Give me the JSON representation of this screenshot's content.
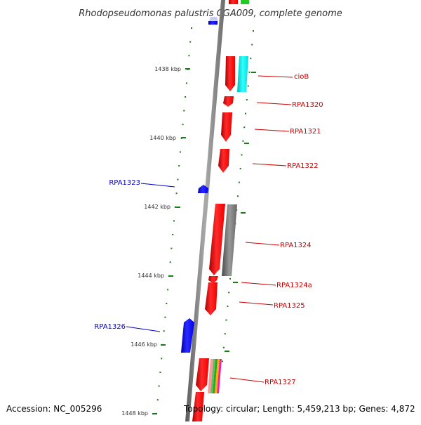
{
  "title": "Rhodopseudomonas palustris CGA009, complete genome",
  "footer": {
    "accession": "Accession: NC_005296",
    "summary": "Topology: circular; Length: 5,459,213 bp; Genes: 4,872"
  },
  "colors": {
    "backbone": "#808080",
    "forward_gene": "#ff0000",
    "reverse_gene": "#0000ff",
    "forward_label": "#cc0000",
    "reverse_label": "#0000cc",
    "tick": "#1a7a1a",
    "ciob_partner": "#00e5e5",
    "rpa1324_partner": "#707070"
  },
  "ruler_labels": [
    "1438 kbp",
    "1440 kbp",
    "1442 kbp",
    "1444 kbp",
    "1446 kbp",
    "1448 kbp"
  ],
  "genes": [
    {
      "id": "cioB",
      "label": "cioB",
      "strand": "forward"
    },
    {
      "id": "RPA1320",
      "label": "RPA1320",
      "strand": "forward"
    },
    {
      "id": "RPA1321",
      "label": "RPA1321",
      "strand": "forward"
    },
    {
      "id": "RPA1322",
      "label": "RPA1322",
      "strand": "forward"
    },
    {
      "id": "RPA1323",
      "label": "RPA1323",
      "strand": "reverse"
    },
    {
      "id": "RPA1324",
      "label": "RPA1324",
      "strand": "forward"
    },
    {
      "id": "RPA1324a",
      "label": "RPA1324a",
      "strand": "forward"
    },
    {
      "id": "RPA1325",
      "label": "RPA1325",
      "strand": "forward"
    },
    {
      "id": "RPA1326",
      "label": "RPA1326",
      "strand": "reverse"
    },
    {
      "id": "RPA1327",
      "label": "RPA1327",
      "strand": "forward"
    }
  ]
}
